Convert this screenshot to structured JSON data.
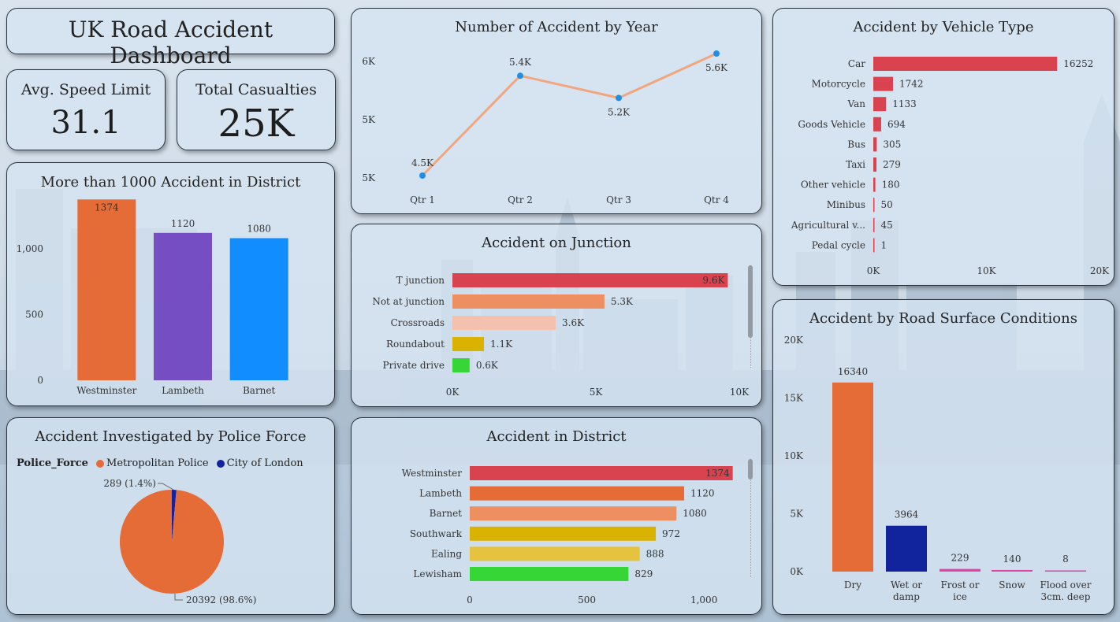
{
  "dashboard": {
    "title": "UK Road Accident Dashboard",
    "kpis": [
      {
        "label": "Avg. Speed Limit",
        "value": "31.1"
      },
      {
        "label": "Total Casualties",
        "value": "25K"
      }
    ]
  },
  "colors": {
    "orange": "#e66c37",
    "purple": "#744ec2",
    "blue": "#118dff",
    "red": "#d9434f",
    "salmon": "#ee8f61",
    "peach": "#f4c1ae",
    "gold": "#d9b300",
    "yellow": "#e6c33e",
    "green": "#37d637",
    "navy": "#12239e",
    "pink": "#e044a7",
    "line": "#f0a77f",
    "point": "#1f8fe5"
  },
  "chart_data": [
    {
      "id": "district_1000",
      "type": "bar",
      "title": "More than 1000 Accident in District",
      "categories": [
        "Westminster",
        "Lambeth",
        "Barnet"
      ],
      "values": [
        1374,
        1120,
        1080
      ],
      "data_labels": [
        "1374",
        "1120",
        "1080"
      ],
      "ylim": [
        0,
        1400
      ],
      "yticks": [
        "0",
        "500",
        "1,000"
      ]
    },
    {
      "id": "police_force",
      "type": "pie",
      "title": "Accident Investigated by Police Force",
      "legend_title": "Police_Force",
      "categories": [
        "Metropolitan Police",
        "City of London"
      ],
      "values": [
        20392,
        289
      ],
      "data_labels": [
        "20392 (98.6%)",
        "289 (1.4%)"
      ],
      "legend": "top-left"
    },
    {
      "id": "by_year",
      "type": "line",
      "title": "Number of Accident by Year",
      "categories": [
        "Qtr 1",
        "Qtr 2",
        "Qtr 3",
        "Qtr 4"
      ],
      "values": [
        4500,
        5400,
        5200,
        5600
      ],
      "data_labels": [
        "4.5K",
        "5.4K",
        "5.2K",
        "5.6K"
      ],
      "yticks": [
        "6K",
        "5K",
        "5K"
      ],
      "ylim": [
        4500,
        5650
      ]
    },
    {
      "id": "junction",
      "type": "bar",
      "orientation": "horizontal",
      "title": "Accident on Junction",
      "categories": [
        "T junction",
        "Not at junction",
        "Crossroads",
        "Roundabout",
        "Private drive"
      ],
      "values": [
        9600,
        5300,
        3600,
        1100,
        600
      ],
      "data_labels": [
        "9.6K",
        "5.3K",
        "3.6K",
        "1.1K",
        "0.6K"
      ],
      "xlim": [
        0,
        10000
      ],
      "xticks": [
        "0K",
        "5K",
        "10K"
      ]
    },
    {
      "id": "district",
      "type": "bar",
      "orientation": "horizontal",
      "title": "Accident in District",
      "categories": [
        "Westminster",
        "Lambeth",
        "Barnet",
        "Southwark",
        "Ealing",
        "Lewisham"
      ],
      "values": [
        1374,
        1120,
        1080,
        972,
        888,
        829
      ],
      "data_labels": [
        "1374",
        "1120",
        "1080",
        "972",
        "888",
        "829"
      ],
      "xlim": [
        0,
        1400
      ],
      "xticks": [
        "0",
        "500",
        "1,000"
      ]
    },
    {
      "id": "vehicle",
      "type": "bar",
      "orientation": "horizontal",
      "title": "Accident by Vehicle Type",
      "categories": [
        "Car",
        "Motorcycle",
        "Van",
        "Goods Vehicle",
        "Bus",
        "Taxi",
        "Other vehicle",
        "Minibus",
        "Agricultural v...",
        "Pedal cycle"
      ],
      "values": [
        16252,
        1742,
        1133,
        694,
        305,
        279,
        180,
        50,
        45,
        1
      ],
      "data_labels": [
        "16252",
        "1742",
        "1133",
        "694",
        "305",
        "279",
        "180",
        "50",
        "45",
        "1"
      ],
      "xlim": [
        0,
        20000
      ],
      "xticks": [
        "0K",
        "10K",
        "20K"
      ]
    },
    {
      "id": "surface",
      "type": "bar",
      "title": "Accident by Road Surface Conditions",
      "categories": [
        "Dry",
        "Wet or damp",
        "Frost or ice",
        "Snow",
        "Flood over 3cm. deep"
      ],
      "category_lines": [
        [
          "Dry"
        ],
        [
          "Wet or",
          "damp"
        ],
        [
          "Frost or",
          "ice"
        ],
        [
          "Snow"
        ],
        [
          "Flood over",
          "3cm. deep"
        ]
      ],
      "values": [
        16340,
        3964,
        229,
        140,
        8
      ],
      "data_labels": [
        "16340",
        "3964",
        "229",
        "140",
        "8"
      ],
      "ylim": [
        0,
        20000
      ],
      "yticks": [
        "0K",
        "5K",
        "10K",
        "15K",
        "20K"
      ]
    }
  ]
}
